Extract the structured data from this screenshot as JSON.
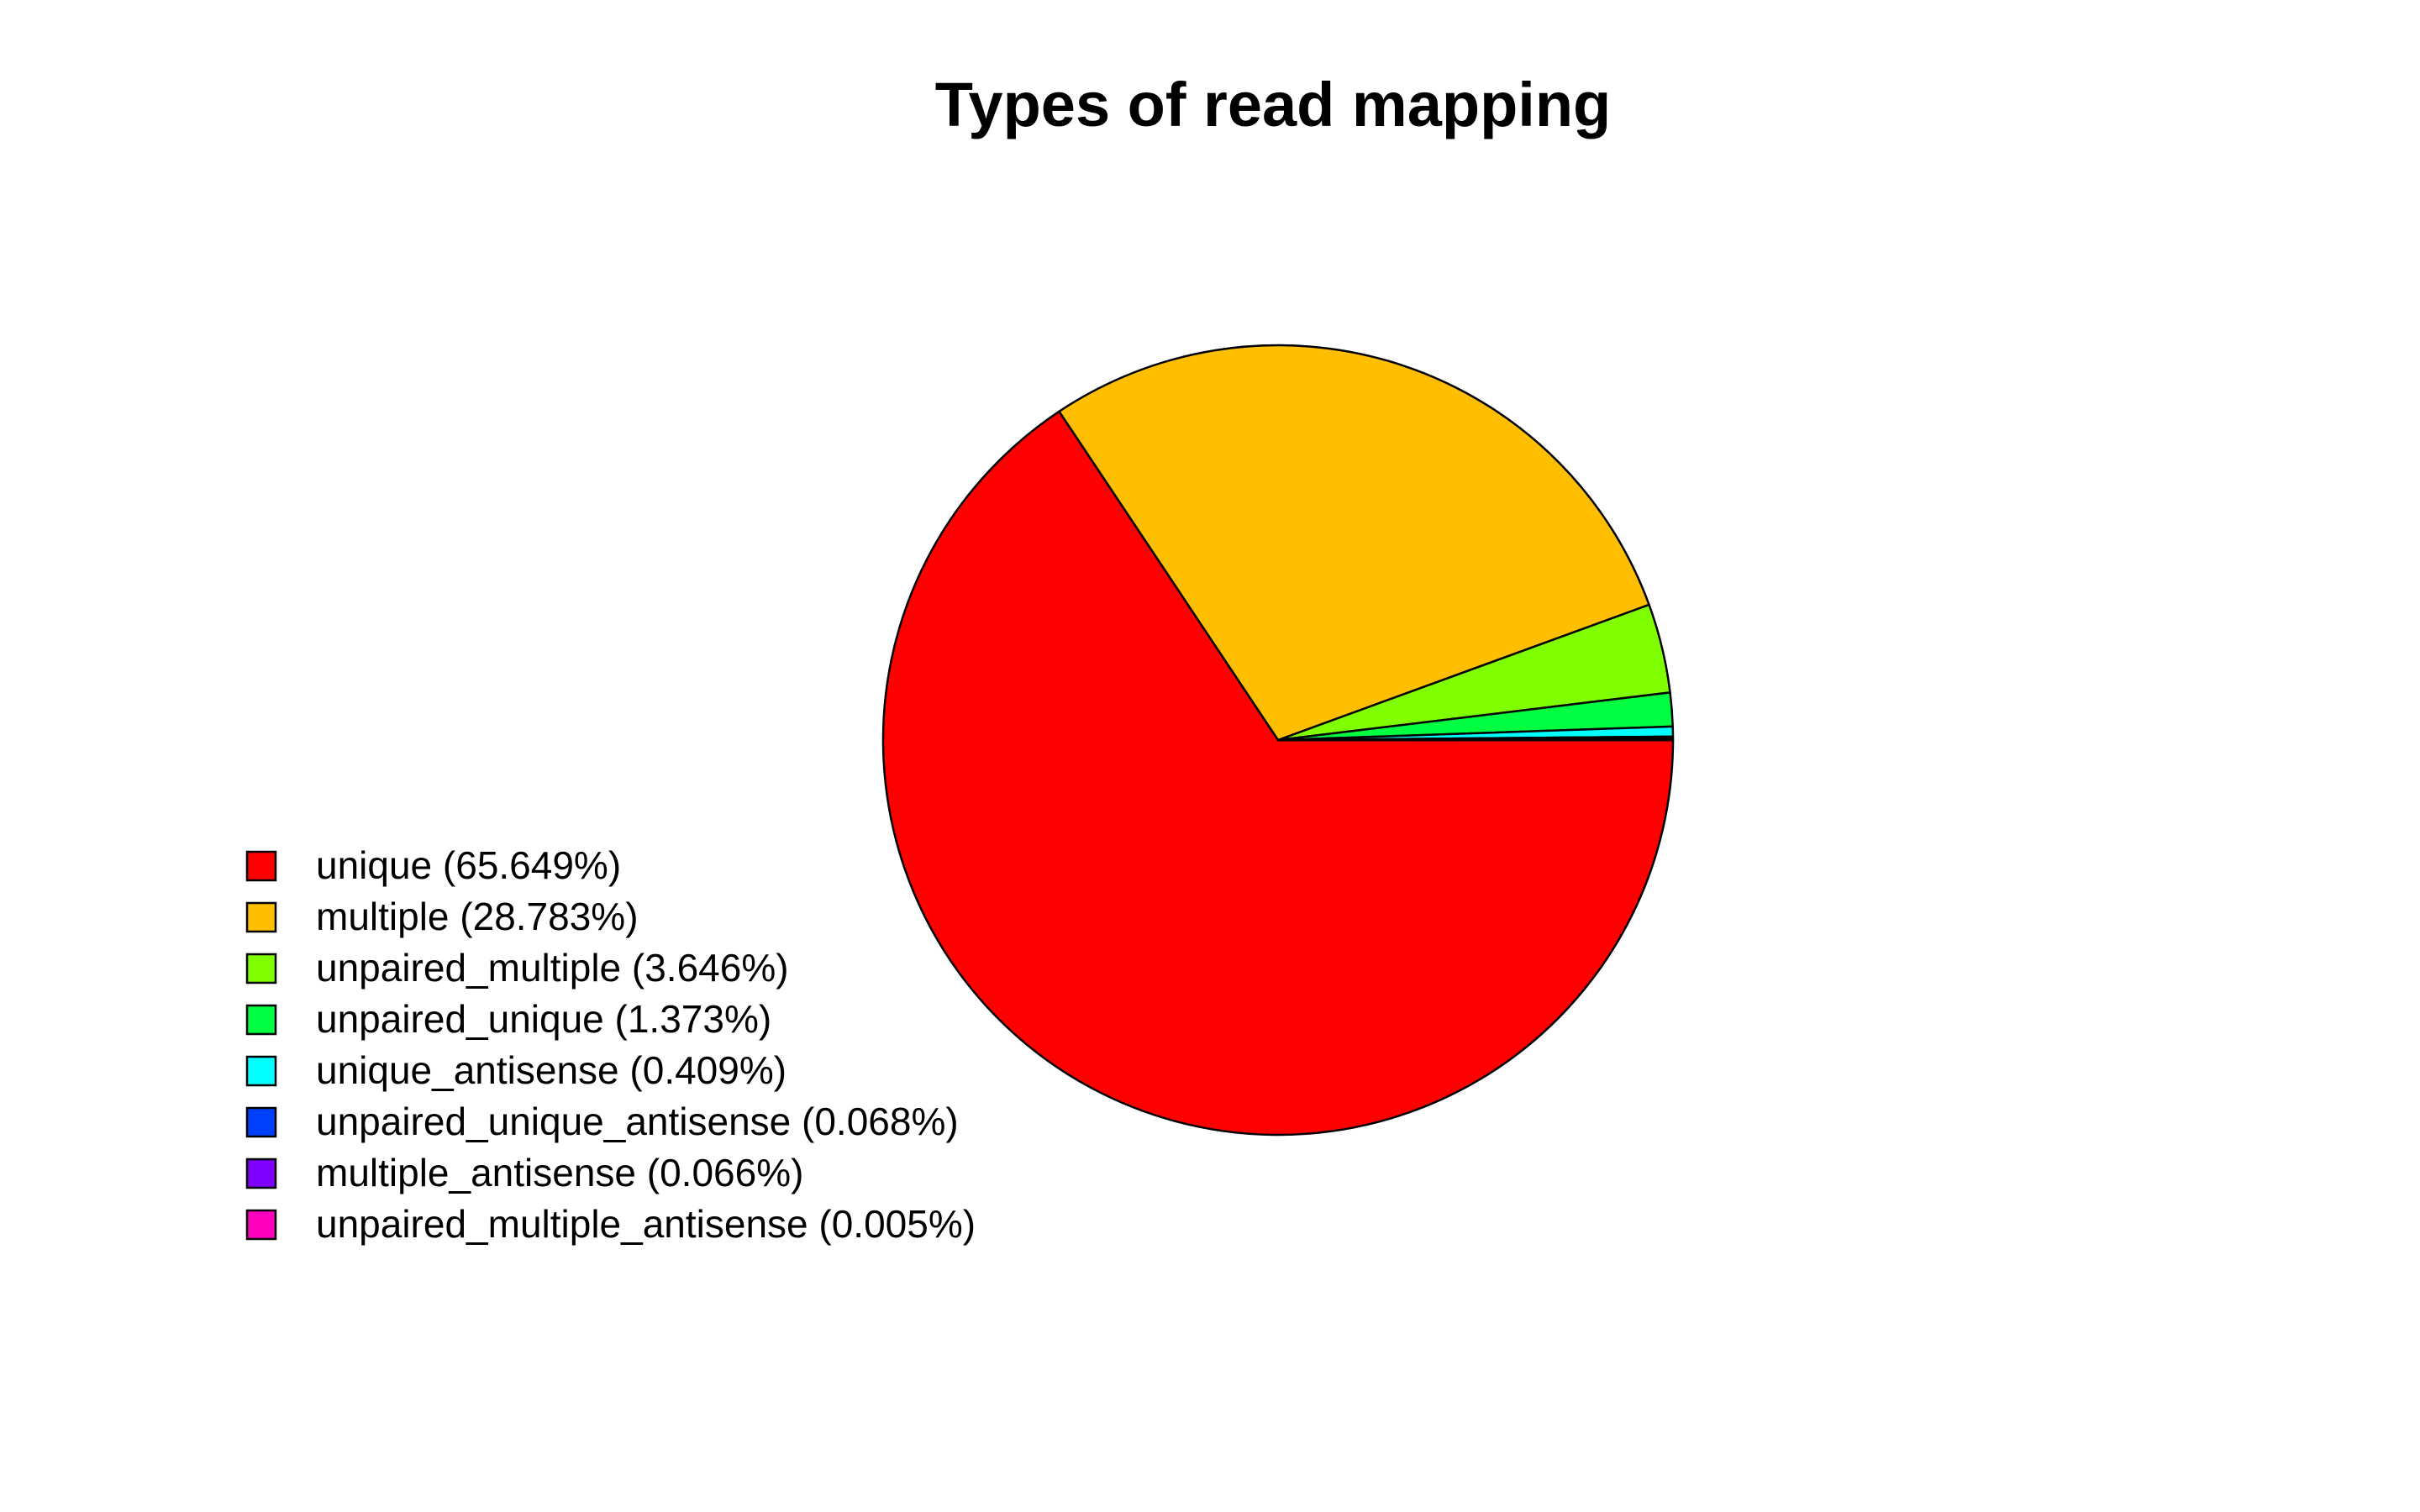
{
  "chart_data": {
    "type": "pie",
    "title": "Types of read mapping",
    "start_angle_deg": 0,
    "direction": "clockwise",
    "legend_position": "bottom-left",
    "slices": [
      {
        "label": "unique",
        "value": 65.649,
        "legend": "unique (65.649%)",
        "color": "#FF0000"
      },
      {
        "label": "multiple",
        "value": 28.783,
        "legend": "multiple (28.783%)",
        "color": "#FFBF00"
      },
      {
        "label": "unpaired_multiple",
        "value": 3.646,
        "legend": "unpaired_multiple (3.646%)",
        "color": "#80FF00"
      },
      {
        "label": "unpaired_unique",
        "value": 1.373,
        "legend": "unpaired_unique (1.373%)",
        "color": "#00FF40"
      },
      {
        "label": "unique_antisense",
        "value": 0.409,
        "legend": "unique_antisense (0.409%)",
        "color": "#00FFFF"
      },
      {
        "label": "unpaired_unique_antisense",
        "value": 0.068,
        "legend": "unpaired_unique_antisense (0.068%)",
        "color": "#0040FF"
      },
      {
        "label": "multiple_antisense",
        "value": 0.066,
        "legend": "multiple_antisense (0.066%)",
        "color": "#8000FF"
      },
      {
        "label": "unpaired_multiple_antisense",
        "value": 0.005,
        "legend": "unpaired_multiple_antisense (0.005%)",
        "color": "#FF00BF"
      }
    ]
  }
}
